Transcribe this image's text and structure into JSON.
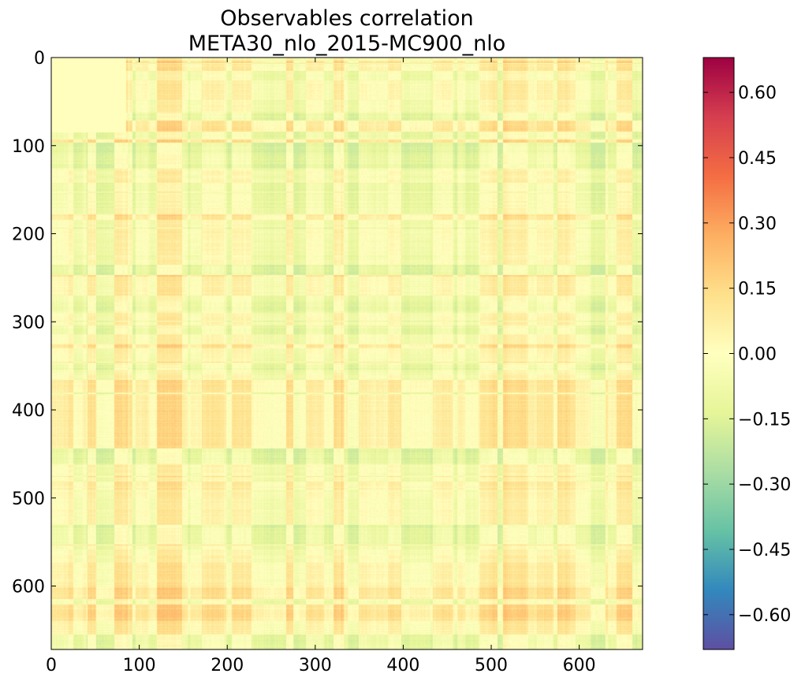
{
  "chart_data": {
    "type": "heatmap",
    "title": "Observables correlation",
    "subtitle": "META30_nlo_2015-MC900_nlo",
    "xlabel": "",
    "ylabel": "",
    "matrix_size": 672,
    "xlim": [
      0,
      672
    ],
    "ylim": [
      672,
      0
    ],
    "x_ticks": [
      0,
      100,
      200,
      300,
      400,
      500,
      600
    ],
    "y_ticks": [
      0,
      100,
      200,
      300,
      400,
      500,
      600
    ],
    "x_tick_labels": [
      "0",
      "100",
      "200",
      "300",
      "400",
      "500",
      "600"
    ],
    "y_tick_labels": [
      "0",
      "100",
      "200",
      "300",
      "400",
      "500",
      "600"
    ],
    "colormap": "Spectral_r",
    "value_range": [
      -0.68,
      0.68
    ],
    "colorbar_ticks": [
      0.6,
      0.45,
      0.3,
      0.15,
      0.0,
      -0.15,
      -0.3,
      -0.45,
      -0.6
    ],
    "colorbar_tick_labels": [
      "0.60",
      "0.45",
      "0.30",
      "0.15",
      "0.00",
      "−0.15",
      "−0.30",
      "−0.45",
      "−0.60"
    ],
    "grid": false,
    "observed_value_band": [
      -0.2,
      0.25
    ]
  },
  "colors": {
    "cmap_stops": [
      "#5e4fa2",
      "#3288bd",
      "#66c2a5",
      "#abdda4",
      "#e6f598",
      "#ffffbf",
      "#fee08b",
      "#fdae61",
      "#f46d43",
      "#d53e4f",
      "#9e0142"
    ],
    "frame": "#000000",
    "background": "#ffffff"
  }
}
